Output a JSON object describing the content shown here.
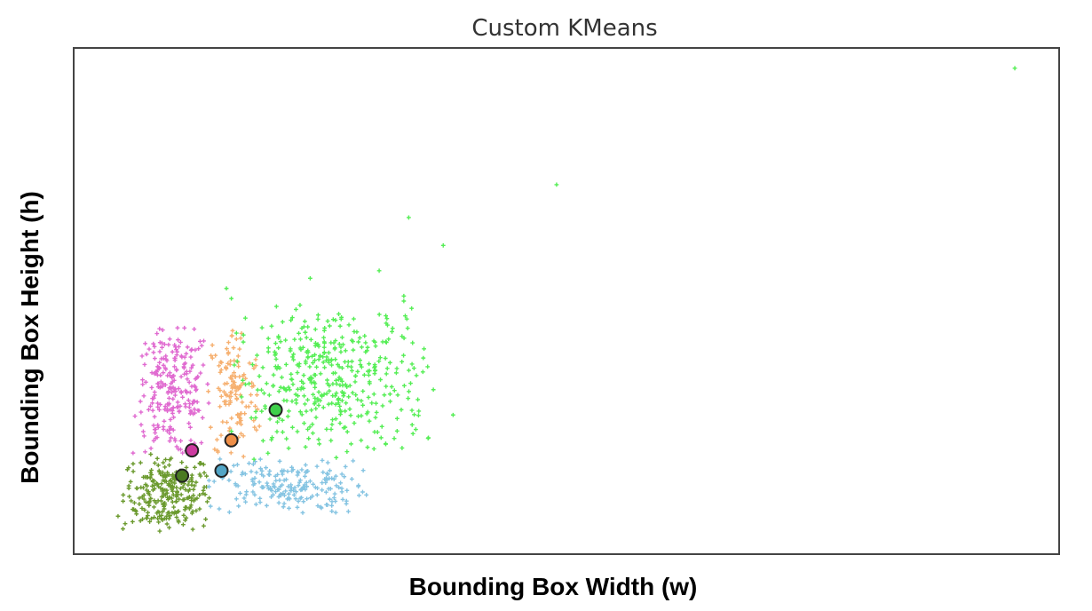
{
  "chart_data": {
    "type": "scatter",
    "title": "Custom KMeans",
    "xlabel": "Bounding Box Width (w)",
    "ylabel": "Bounding Box Height (h)",
    "xlim": [
      0,
      100
    ],
    "ylim": [
      0,
      100
    ],
    "grid": false,
    "ticks_visible": false,
    "legend": "none",
    "clusters": [
      {
        "color": "#6b9a2e",
        "center_color": "#4a7a22",
        "center": [
          11,
          15.5
        ],
        "bounds": [
          5,
          14,
          4,
          20
        ],
        "count": 260
      },
      {
        "color": "#e06ad0",
        "center_color": "#cc3aa0",
        "center": [
          12,
          20.5
        ],
        "bounds": [
          6,
          14,
          19,
          45
        ],
        "count": 240
      },
      {
        "color": "#f6b070",
        "center_color": "#ef8f48",
        "center": [
          16,
          22.5
        ],
        "bounds": [
          13.5,
          19,
          18,
          45
        ],
        "count": 130
      },
      {
        "color": "#85c4e2",
        "center_color": "#52a5c6",
        "center": [
          15,
          16.5
        ],
        "bounds": [
          13.5,
          30,
          8,
          19
        ],
        "count": 200
      },
      {
        "color": "#55ee55",
        "center_color": "#3fd04a",
        "center": [
          20.5,
          28.5
        ],
        "bounds": [
          16,
          36,
          18,
          50
        ],
        "count": 420
      }
    ],
    "outliers": [
      {
        "x": 95.5,
        "y": 96,
        "cluster": 4
      },
      {
        "x": 49,
        "y": 73,
        "cluster": 4
      },
      {
        "x": 34,
        "y": 66.5,
        "cluster": 4
      },
      {
        "x": 37.5,
        "y": 61,
        "cluster": 4
      },
      {
        "x": 31,
        "y": 56,
        "cluster": 4
      },
      {
        "x": 24,
        "y": 54.5,
        "cluster": 4
      },
      {
        "x": 15.5,
        "y": 52.5,
        "cluster": 4
      },
      {
        "x": 33.5,
        "y": 51,
        "cluster": 4
      },
      {
        "x": 33.5,
        "y": 50,
        "cluster": 4
      },
      {
        "x": 16,
        "y": 50.5,
        "cluster": 4
      },
      {
        "x": 38.5,
        "y": 27.5,
        "cluster": 4
      },
      {
        "x": 36,
        "y": 23,
        "cluster": 4
      },
      {
        "x": 36.5,
        "y": 32.5,
        "cluster": 4
      },
      {
        "x": 4.5,
        "y": 7.5,
        "cluster": 0
      },
      {
        "x": 5,
        "y": 5,
        "cluster": 0
      }
    ]
  }
}
